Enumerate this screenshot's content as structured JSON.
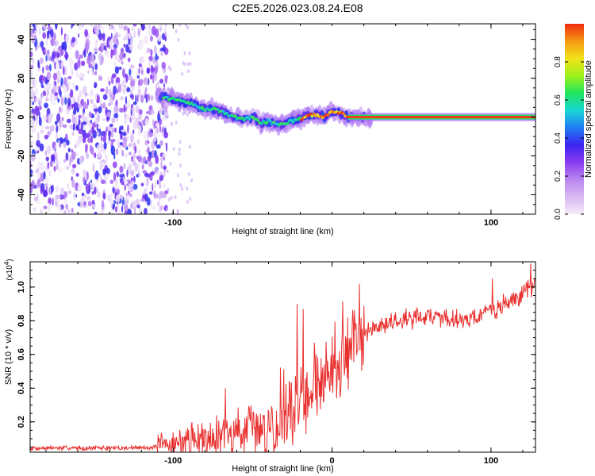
{
  "title": "C2E5.2026.023.08.24.E08",
  "colors": {
    "axis": "#000000",
    "snr_line": "#e8312f",
    "colorbar": [
      "#f4ecf9",
      "#d9b8f2",
      "#b985f0",
      "#8a3cf0",
      "#3a24f0",
      "#1f7df2",
      "#18d6d6",
      "#1fe65c",
      "#9ef21a",
      "#f2e21a",
      "#f59a12",
      "#f02a10"
    ]
  },
  "chart_data": [
    {
      "type": "heatmap",
      "name": "spectrogram",
      "xlabel": "Height of straight line (km)",
      "ylabel": "Frequency (Hz)",
      "xlim": [
        -190,
        128
      ],
      "ylim": [
        -50,
        48
      ],
      "x_ticks": [
        -100,
        100
      ],
      "y_ticks": [
        -40,
        -20,
        0,
        20,
        40
      ],
      "x_tick_labels": [
        "-100",
        "100"
      ],
      "y_tick_labels": [
        "-40",
        "-20",
        "0",
        "20",
        "40"
      ],
      "noise_region_x": [
        -190,
        -108
      ],
      "ridge": {
        "x": [
          -105,
          -100,
          -95,
          -90,
          -85,
          -80,
          -75,
          -70,
          -65,
          -60,
          -55,
          -50,
          -45,
          -40,
          -35,
          -30,
          -25,
          -20,
          -15,
          -10,
          -5,
          0,
          5,
          10,
          15,
          20,
          128
        ],
        "y": [
          10,
          9,
          8,
          7,
          6,
          4,
          4,
          3,
          1,
          0,
          -1,
          0,
          -3,
          -2,
          -4,
          -3,
          -2,
          -1,
          1,
          1,
          0,
          3,
          2,
          0,
          0,
          0,
          0
        ]
      },
      "colorbar": {
        "label": "Normalized spectral amplitude",
        "range": [
          0,
          1
        ],
        "ticks": [
          0.0,
          0.2,
          0.4,
          0.6,
          0.8
        ],
        "tick_labels": [
          "0.0",
          "0.2",
          "0.4",
          "0.6",
          "0.8"
        ]
      }
    },
    {
      "type": "line",
      "name": "snr",
      "xlabel": "Height of straight line (km)",
      "ylabel": "SNR (10 * v/v)",
      "y_multiplier": "(x10",
      "y_multiplier_exp": "4",
      "y_multiplier_close": ")",
      "xlim": [
        -190,
        128
      ],
      "ylim": [
        0.02,
        1.15
      ],
      "x_ticks": [
        -100,
        0,
        100
      ],
      "y_ticks": [
        0.2,
        0.4,
        0.6,
        0.8,
        1.0
      ],
      "x_tick_labels": [
        "-100",
        "0",
        "100"
      ],
      "y_tick_labels": [
        "0.2",
        "0.4",
        "0.6",
        "0.8",
        "1.0"
      ],
      "trend": {
        "x": [
          -190,
          -160,
          -130,
          -110,
          -100,
          -90,
          -80,
          -70,
          -60,
          -50,
          -40,
          -30,
          -25,
          -20,
          -15,
          -10,
          -5,
          0,
          5,
          10,
          15,
          20,
          30,
          40,
          50,
          60,
          70,
          80,
          90,
          100,
          110,
          120,
          128
        ],
        "y": [
          0.045,
          0.045,
          0.045,
          0.05,
          0.07,
          0.09,
          0.11,
          0.13,
          0.14,
          0.15,
          0.16,
          0.2,
          0.25,
          0.32,
          0.38,
          0.42,
          0.45,
          0.47,
          0.55,
          0.62,
          0.68,
          0.72,
          0.77,
          0.8,
          0.82,
          0.83,
          0.82,
          0.81,
          0.82,
          0.86,
          0.9,
          0.96,
          1.02
        ]
      },
      "spikes": [
        {
          "x": -67,
          "y": 0.4
        },
        {
          "x": -22,
          "y": 0.9
        },
        {
          "x": -18,
          "y": 0.87
        },
        {
          "x": 10,
          "y": 0.82
        },
        {
          "x": 101,
          "y": 1.05
        },
        {
          "x": 125,
          "y": 1.14
        }
      ]
    }
  ]
}
